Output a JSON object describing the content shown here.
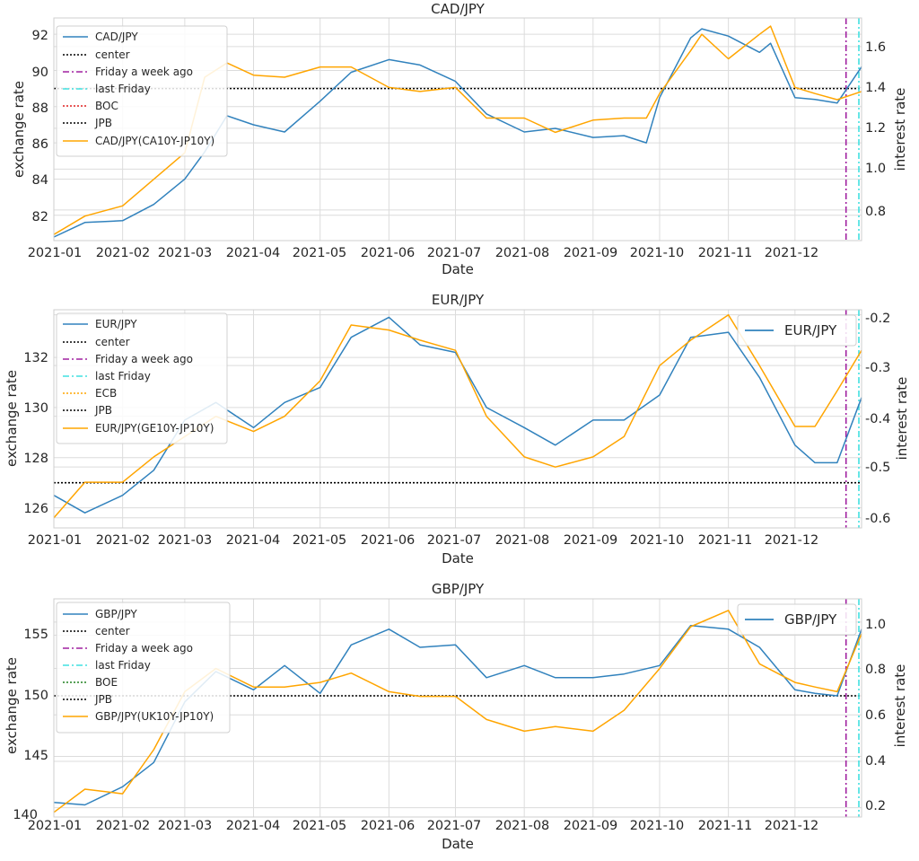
{
  "figure": {
    "background": "#ffffff",
    "grid": true,
    "colors": {
      "pair": "#3182bd",
      "spread": "#ffa500",
      "center": "#000000",
      "week_ago": "#a020a0",
      "last_friday": "#40e0e0",
      "grid": "#dcdcdc"
    }
  },
  "chart_data": [
    {
      "type": "line",
      "title": "CAD/JPY",
      "xlabel": "Date",
      "ylabel": "exchange rate",
      "ylabel2": "interest rate",
      "x_ticks": [
        "2021-01",
        "2021-02",
        "2021-03",
        "2021-04",
        "2021-05",
        "2021-06",
        "2021-07",
        "2021-08",
        "2021-09",
        "2021-10",
        "2021-11",
        "2021-12"
      ],
      "y_ticks": [
        "82",
        "84",
        "86",
        "88",
        "90",
        "92"
      ],
      "y2_ticks": [
        "0.8",
        "1.0",
        "1.2",
        "1.4",
        "1.6"
      ],
      "ylim": [
        80.6,
        92.9
      ],
      "y2lim": [
        0.65,
        1.74
      ],
      "center": 89.0,
      "legend": [
        "CAD/JPY",
        "center",
        "Friday a week ago",
        "last Friday",
        "BOC",
        "JPB",
        "CAD/JPY(CA10Y-JP10Y)"
      ],
      "legend_placement": "upper left",
      "legend2": null,
      "friday_week_ago": "2021-12-24",
      "last_friday": "2021-12-31",
      "series": [
        {
          "name": "CAD/JPY",
          "axis": "left",
          "x": [
            "2021-01-01",
            "2021-01-15",
            "2021-02-01",
            "2021-02-15",
            "2021-03-01",
            "2021-03-10",
            "2021-03-20",
            "2021-04-01",
            "2021-04-15",
            "2021-05-01",
            "2021-05-15",
            "2021-06-01",
            "2021-06-15",
            "2021-07-01",
            "2021-07-15",
            "2021-08-01",
            "2021-08-15",
            "2021-09-01",
            "2021-09-15",
            "2021-09-25",
            "2021-10-01",
            "2021-10-15",
            "2021-10-20",
            "2021-11-01",
            "2021-11-15",
            "2021-11-20",
            "2021-12-01",
            "2021-12-10",
            "2021-12-20",
            "2021-12-31"
          ],
          "values": [
            80.8,
            81.6,
            81.7,
            82.6,
            84.0,
            85.5,
            87.5,
            87.0,
            86.6,
            88.3,
            89.9,
            90.6,
            90.3,
            89.4,
            87.6,
            86.6,
            86.8,
            86.3,
            86.4,
            86.0,
            88.5,
            91.8,
            92.3,
            91.9,
            91.0,
            91.5,
            88.5,
            88.4,
            88.2,
            90.2
          ]
        },
        {
          "name": "CAD/JPY(CA10Y-JP10Y)",
          "axis": "right",
          "x": [
            "2021-01-01",
            "2021-01-15",
            "2021-02-01",
            "2021-02-15",
            "2021-03-01",
            "2021-03-10",
            "2021-03-20",
            "2021-04-01",
            "2021-04-15",
            "2021-05-01",
            "2021-05-15",
            "2021-06-01",
            "2021-06-15",
            "2021-07-01",
            "2021-07-15",
            "2021-08-01",
            "2021-08-15",
            "2021-09-01",
            "2021-09-15",
            "2021-09-25",
            "2021-10-01",
            "2021-10-15",
            "2021-10-20",
            "2021-11-01",
            "2021-11-15",
            "2021-11-20",
            "2021-12-01",
            "2021-12-10",
            "2021-12-20",
            "2021-12-31"
          ],
          "values": [
            0.68,
            0.77,
            0.82,
            0.95,
            1.08,
            1.45,
            1.52,
            1.46,
            1.45,
            1.5,
            1.5,
            1.4,
            1.38,
            1.4,
            1.25,
            1.25,
            1.18,
            1.24,
            1.25,
            1.25,
            1.37,
            1.58,
            1.66,
            1.54,
            1.66,
            1.7,
            1.4,
            1.37,
            1.34,
            1.38
          ]
        }
      ]
    },
    {
      "type": "line",
      "title": "EUR/JPY",
      "xlabel": "Date",
      "ylabel": "exchange rate",
      "ylabel2": "interest rate",
      "x_ticks": [
        "2021-01",
        "2021-02",
        "2021-03",
        "2021-04",
        "2021-05",
        "2021-06",
        "2021-07",
        "2021-08",
        "2021-09",
        "2021-10",
        "2021-11",
        "2021-12"
      ],
      "y_ticks": [
        "126",
        "128",
        "130",
        "132"
      ],
      "y2_ticks": [
        "-0.6",
        "-0.5",
        "-0.4",
        "-0.3",
        "-0.2"
      ],
      "ylim": [
        125.2,
        133.9
      ],
      "y2lim": [
        -0.62,
        -0.19
      ],
      "center": 127.0,
      "legend": [
        "EUR/JPY",
        "center",
        "Friday a week ago",
        "last Friday",
        "ECB",
        "JPB",
        "EUR/JPY(GE10Y-JP10Y)"
      ],
      "legend_placement": "upper left",
      "legend2": "EUR/JPY",
      "friday_week_ago": "2021-12-24",
      "last_friday": "2021-12-31",
      "series": [
        {
          "name": "EUR/JPY",
          "axis": "left",
          "x": [
            "2021-01-01",
            "2021-01-15",
            "2021-02-01",
            "2021-02-15",
            "2021-03-01",
            "2021-03-15",
            "2021-04-01",
            "2021-04-15",
            "2021-05-01",
            "2021-05-15",
            "2021-06-01",
            "2021-06-15",
            "2021-07-01",
            "2021-07-15",
            "2021-08-01",
            "2021-08-15",
            "2021-09-01",
            "2021-09-15",
            "2021-10-01",
            "2021-10-15",
            "2021-11-01",
            "2021-11-15",
            "2021-12-01",
            "2021-12-10",
            "2021-12-20",
            "2021-12-31"
          ],
          "values": [
            126.5,
            125.8,
            126.5,
            127.5,
            129.5,
            130.2,
            129.2,
            130.2,
            130.8,
            132.8,
            133.6,
            132.5,
            132.2,
            130.0,
            129.2,
            128.5,
            129.5,
            129.5,
            130.5,
            132.8,
            133.0,
            131.2,
            128.5,
            127.8,
            127.8,
            130.4
          ]
        },
        {
          "name": "EUR/JPY(GE10Y-JP10Y)",
          "axis": "right",
          "x": [
            "2021-01-01",
            "2021-01-15",
            "2021-02-01",
            "2021-02-15",
            "2021-03-01",
            "2021-03-15",
            "2021-04-01",
            "2021-04-15",
            "2021-05-01",
            "2021-05-15",
            "2021-06-01",
            "2021-06-15",
            "2021-07-01",
            "2021-07-15",
            "2021-08-01",
            "2021-08-15",
            "2021-09-01",
            "2021-09-15",
            "2021-10-01",
            "2021-10-15",
            "2021-11-01",
            "2021-11-15",
            "2021-12-01",
            "2021-12-10",
            "2021-12-20",
            "2021-12-31"
          ],
          "values": [
            -0.6,
            -0.53,
            -0.53,
            -0.48,
            -0.44,
            -0.4,
            -0.43,
            -0.4,
            -0.33,
            -0.22,
            -0.23,
            -0.25,
            -0.27,
            -0.4,
            -0.48,
            -0.5,
            -0.48,
            -0.44,
            -0.3,
            -0.25,
            -0.2,
            -0.3,
            -0.42,
            -0.42,
            -0.35,
            -0.27
          ]
        }
      ]
    },
    {
      "type": "line",
      "title": "GBP/JPY",
      "xlabel": "Date",
      "ylabel": "exchange rate",
      "ylabel2": "interest rate",
      "x_ticks": [
        "2021-01",
        "2021-02",
        "2021-03",
        "2021-04",
        "2021-05",
        "2021-06",
        "2021-07",
        "2021-08",
        "2021-09",
        "2021-10",
        "2021-11",
        "2021-12"
      ],
      "y_ticks": [
        "140",
        "145",
        "150",
        "155"
      ],
      "y2_ticks": [
        "0.2",
        "0.4",
        "0.6",
        "0.8",
        "1.0"
      ],
      "ylim": [
        140.0,
        158.0
      ],
      "y2lim": [
        0.16,
        1.1
      ],
      "center": 150.0,
      "legend": [
        "GBP/JPY",
        "center",
        "Friday a week ago",
        "last Friday",
        "BOE",
        "JPB",
        "GBP/JPY(UK10Y-JP10Y)"
      ],
      "legend_placement": "upper left",
      "legend2": "GBP/JPY",
      "friday_week_ago": "2021-12-24",
      "last_friday": "2021-12-31",
      "series": [
        {
          "name": "GBP/JPY",
          "axis": "left",
          "x": [
            "2021-01-01",
            "2021-01-15",
            "2021-02-01",
            "2021-02-15",
            "2021-03-01",
            "2021-03-15",
            "2021-04-01",
            "2021-04-15",
            "2021-05-01",
            "2021-05-15",
            "2021-06-01",
            "2021-06-15",
            "2021-07-01",
            "2021-07-15",
            "2021-08-01",
            "2021-08-15",
            "2021-09-01",
            "2021-09-15",
            "2021-10-01",
            "2021-10-15",
            "2021-11-01",
            "2021-11-15",
            "2021-12-01",
            "2021-12-10",
            "2021-12-20",
            "2021-12-31"
          ],
          "values": [
            141.2,
            141.0,
            142.5,
            144.5,
            149.5,
            152.0,
            150.5,
            152.5,
            150.2,
            154.2,
            155.5,
            154.0,
            154.2,
            151.5,
            152.5,
            151.5,
            151.5,
            151.8,
            152.5,
            155.8,
            155.5,
            154.0,
            150.5,
            150.2,
            150.0,
            155.5
          ]
        },
        {
          "name": "GBP/JPY(UK10Y-JP10Y)",
          "axis": "right",
          "x": [
            "2021-01-01",
            "2021-01-15",
            "2021-02-01",
            "2021-02-15",
            "2021-03-01",
            "2021-03-15",
            "2021-04-01",
            "2021-04-15",
            "2021-05-01",
            "2021-05-15",
            "2021-06-01",
            "2021-06-15",
            "2021-07-01",
            "2021-07-15",
            "2021-08-01",
            "2021-08-15",
            "2021-09-01",
            "2021-09-15",
            "2021-10-01",
            "2021-10-15",
            "2021-11-01",
            "2021-11-15",
            "2021-12-01",
            "2021-12-10",
            "2021-12-20",
            "2021-12-31"
          ],
          "values": [
            0.18,
            0.28,
            0.26,
            0.45,
            0.7,
            0.8,
            0.72,
            0.72,
            0.74,
            0.78,
            0.7,
            0.68,
            0.68,
            0.58,
            0.53,
            0.55,
            0.53,
            0.62,
            0.8,
            0.98,
            1.05,
            0.82,
            0.74,
            0.72,
            0.7,
            0.95
          ]
        }
      ]
    }
  ]
}
